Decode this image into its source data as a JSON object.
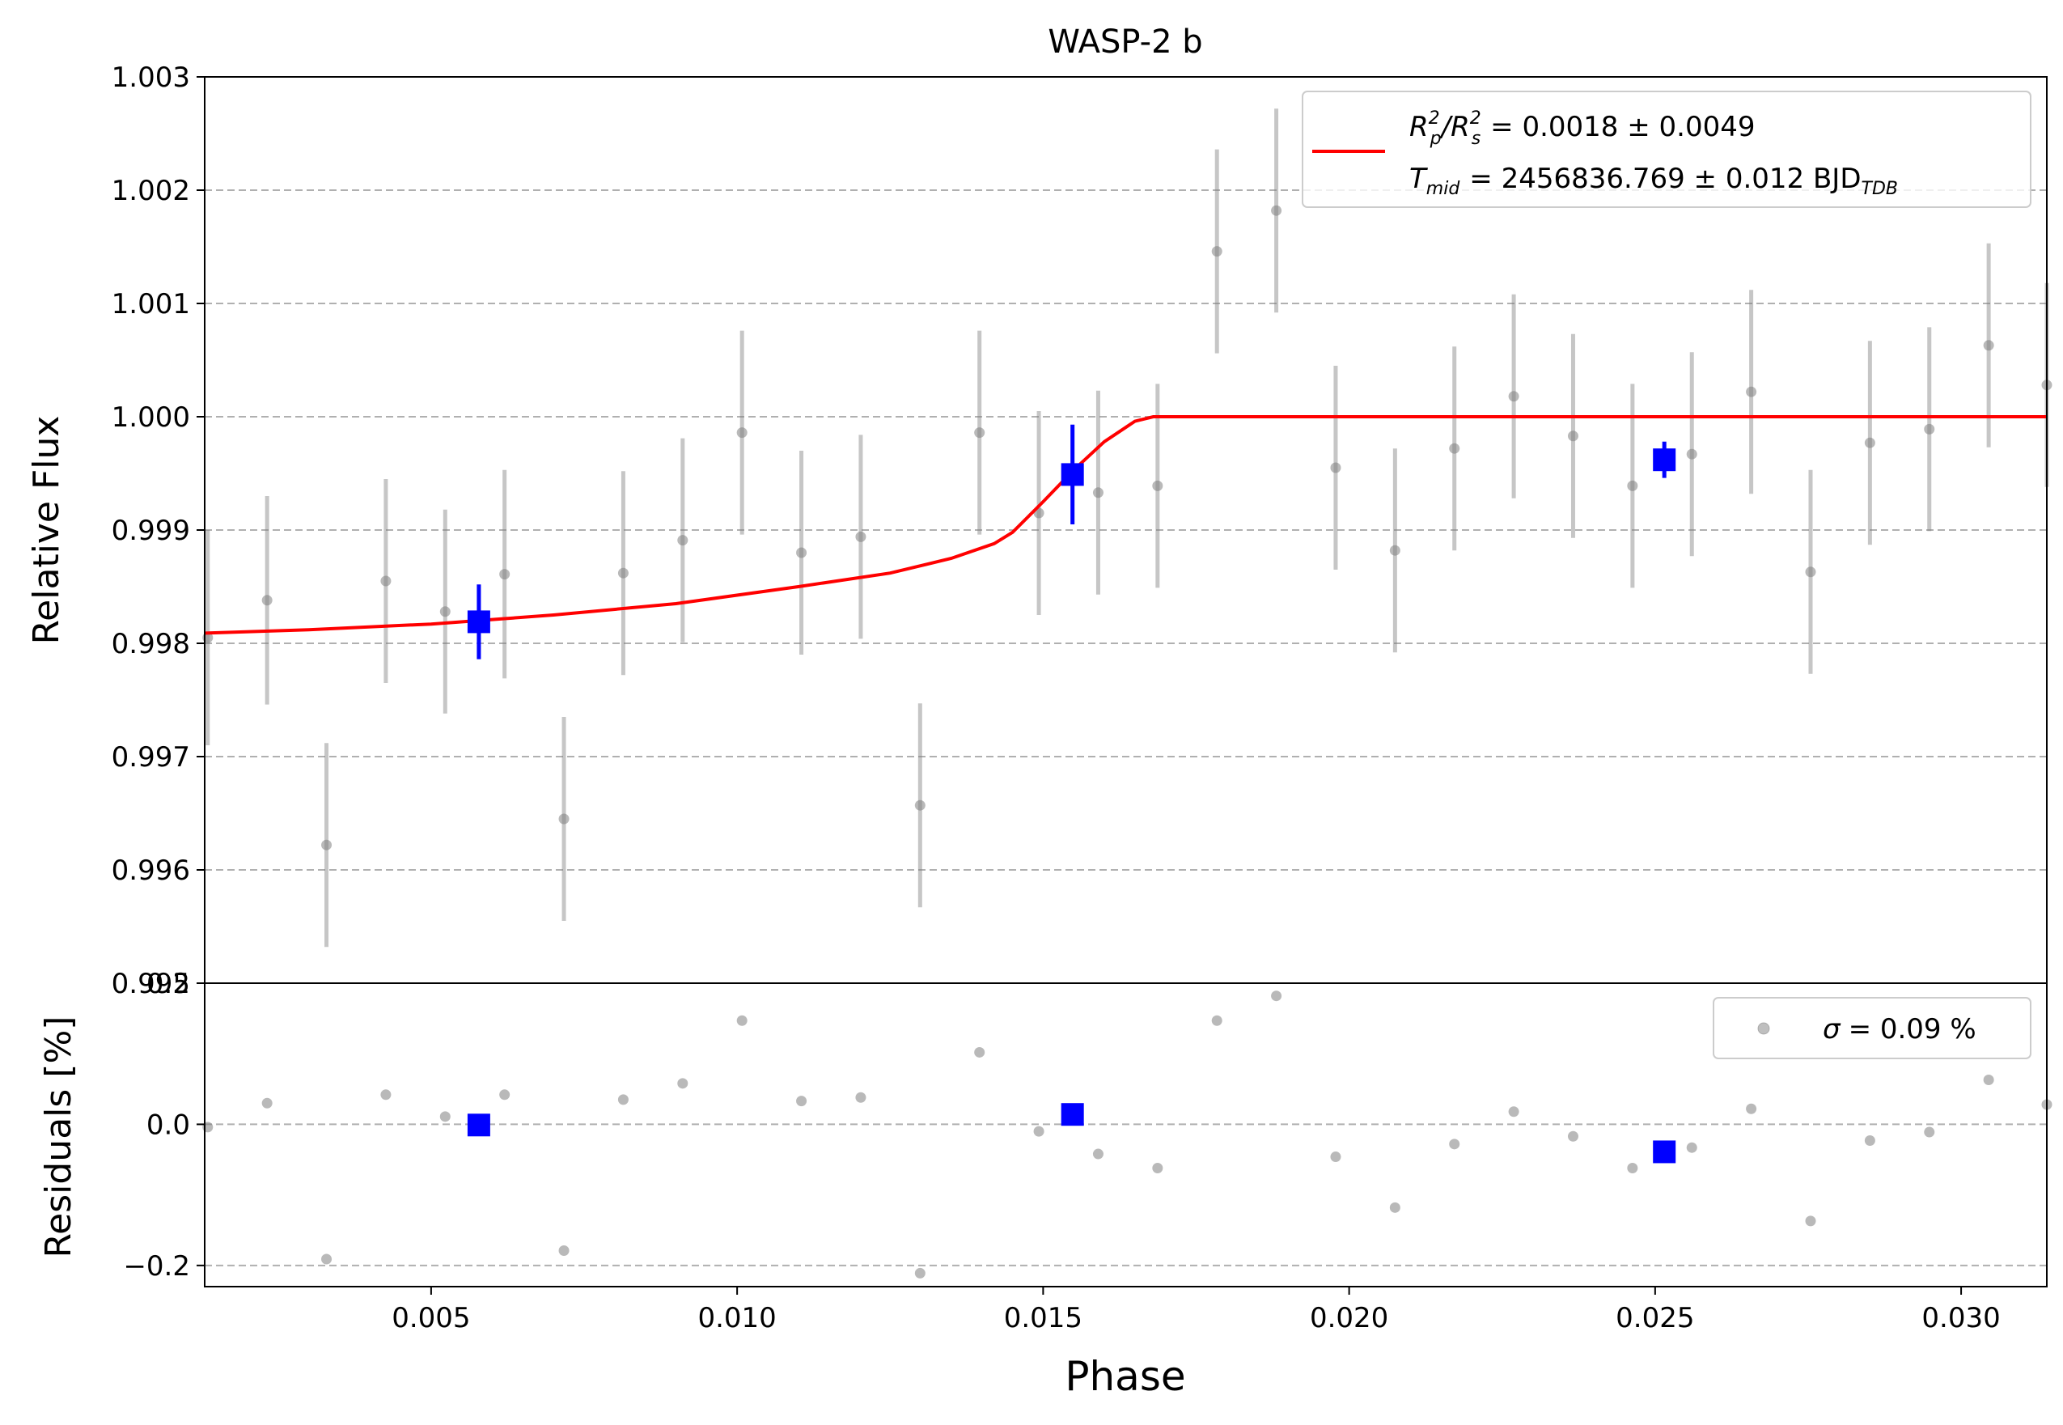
{
  "chart_data": {
    "type": "scatter",
    "title": "WASP-2 b",
    "xlabel": "Phase",
    "xlim": [
      0.0013,
      0.0314
    ],
    "x_ticks": [
      "0.005",
      "0.010",
      "0.015",
      "0.020",
      "0.025",
      "0.030"
    ],
    "x_tick_values": [
      0.005,
      0.01,
      0.015,
      0.02,
      0.025,
      0.03
    ],
    "grid": "horizontal dashed",
    "top_panel": {
      "ylabel": "Relative Flux",
      "ylim": [
        0.995,
        1.003
      ],
      "y_ticks": [
        "1.003",
        "1.002",
        "1.001",
        "1.000",
        "0.999",
        "0.998",
        "0.997",
        "0.996",
        "0.995"
      ],
      "y_tick_values": [
        1.003,
        1.002,
        1.001,
        1.0,
        0.999,
        0.998,
        0.997,
        0.996,
        0.995
      ],
      "legend": {
        "location": "top-right",
        "r_label": "R",
        "r_sub1": "p",
        "r_sup1": "2",
        "r_sup2": "2",
        "r_sub2": "s",
        "r_value": "= 0.0018 ± 0.0049",
        "t_label": "T",
        "t_sub": "mid",
        "t_value": "= 2456836.769 ± 0.012 BJD",
        "t_value_sub": "TDB"
      },
      "series": [
        {
          "kind": "data",
          "color": "#808080",
          "points": [
            [
              0.00135,
              0.99805,
              0.00095
            ],
            [
              0.00232,
              0.99838,
              0.00092
            ],
            [
              0.00329,
              0.99622,
              0.0009
            ],
            [
              0.00426,
              0.99855,
              0.0009
            ],
            [
              0.00523,
              0.99828,
              0.0009
            ],
            [
              0.0062,
              0.99861,
              0.00092
            ],
            [
              0.00717,
              0.99645,
              0.0009
            ],
            [
              0.00814,
              0.99862,
              0.0009
            ],
            [
              0.00911,
              0.99891,
              0.0009
            ],
            [
              0.01008,
              0.99986,
              0.0009
            ],
            [
              0.01105,
              0.9988,
              0.0009
            ],
            [
              0.01202,
              0.99894,
              0.0009
            ],
            [
              0.01299,
              0.99657,
              0.0009
            ],
            [
              0.01396,
              0.99986,
              0.0009
            ],
            [
              0.01493,
              0.99915,
              0.0009
            ],
            [
              0.0159,
              0.99933,
              0.0009
            ],
            [
              0.01687,
              0.99939,
              0.0009
            ],
            [
              0.01784,
              1.00146,
              0.0009
            ],
            [
              0.01881,
              1.00182,
              0.0009
            ],
            [
              0.01978,
              0.99955,
              0.0009
            ],
            [
              0.02075,
              0.99882,
              0.0009
            ],
            [
              0.02172,
              0.99972,
              0.0009
            ],
            [
              0.02269,
              1.00018,
              0.0009
            ],
            [
              0.02366,
              0.99983,
              0.0009
            ],
            [
              0.02463,
              0.99939,
              0.0009
            ],
            [
              0.0256,
              0.99967,
              0.0009
            ],
            [
              0.02657,
              1.00022,
              0.0009
            ],
            [
              0.02754,
              0.99863,
              0.0009
            ],
            [
              0.02851,
              0.99977,
              0.0009
            ],
            [
              0.02948,
              0.99989,
              0.0009
            ],
            [
              0.03045,
              1.00063,
              0.0009
            ],
            [
              0.0314,
              1.00028,
              0.0009
            ]
          ]
        },
        {
          "kind": "binned",
          "color": "#0000ff",
          "points": [
            [
              0.00578,
              0.99819,
              0.00033
            ],
            [
              0.01548,
              0.99949,
              0.00044
            ],
            [
              0.02515,
              0.99962,
              0.00016
            ]
          ]
        },
        {
          "kind": "model",
          "color": "#ff0000",
          "points": [
            [
              0.0013,
              0.99809
            ],
            [
              0.003,
              0.99812
            ],
            [
              0.005,
              0.99817
            ],
            [
              0.007,
              0.99825
            ],
            [
              0.009,
              0.99835
            ],
            [
              0.011,
              0.9985
            ],
            [
              0.0125,
              0.99862
            ],
            [
              0.0135,
              0.99875
            ],
            [
              0.0142,
              0.99888
            ],
            [
              0.0145,
              0.99898
            ],
            [
              0.015,
              0.99925
            ],
            [
              0.0155,
              0.99953
            ],
            [
              0.016,
              0.99978
            ],
            [
              0.0165,
              0.99996
            ],
            [
              0.0168,
              1.0
            ],
            [
              0.0314,
              1.0
            ]
          ]
        }
      ]
    },
    "bottom_panel": {
      "ylabel": "Residuals [%]",
      "ylim": [
        -0.23,
        0.2
      ],
      "y_ticks": [
        "0.2",
        "0.0",
        "−0.2"
      ],
      "y_tick_values": [
        0.2,
        0.0,
        -0.2
      ],
      "legend": {
        "location": "top-right",
        "sigma_symbol": "σ",
        "sigma_value": "= 0.09 %"
      },
      "series": [
        {
          "kind": "residuals",
          "color": "#808080",
          "points": [
            [
              0.00135,
              -0.004
            ],
            [
              0.00232,
              0.03
            ],
            [
              0.00329,
              -0.191
            ],
            [
              0.00426,
              0.042
            ],
            [
              0.00523,
              0.011
            ],
            [
              0.0062,
              0.042
            ],
            [
              0.00717,
              -0.179
            ],
            [
              0.00814,
              0.035
            ],
            [
              0.00911,
              0.058
            ],
            [
              0.01008,
              0.147
            ],
            [
              0.01105,
              0.033
            ],
            [
              0.01202,
              0.038
            ],
            [
              0.01299,
              -0.211
            ],
            [
              0.01396,
              0.102
            ],
            [
              0.01493,
              -0.01
            ],
            [
              0.0159,
              -0.042
            ],
            [
              0.01687,
              -0.062
            ],
            [
              0.01784,
              0.147
            ],
            [
              0.01881,
              0.182
            ],
            [
              0.01978,
              -0.046
            ],
            [
              0.02075,
              -0.118
            ],
            [
              0.02172,
              -0.028
            ],
            [
              0.02269,
              0.018
            ],
            [
              0.02366,
              -0.017
            ],
            [
              0.02463,
              -0.062
            ],
            [
              0.0256,
              -0.033
            ],
            [
              0.02657,
              0.022
            ],
            [
              0.02754,
              -0.137
            ],
            [
              0.02851,
              -0.023
            ],
            [
              0.02948,
              -0.011
            ],
            [
              0.03045,
              0.063
            ],
            [
              0.0314,
              0.028
            ]
          ]
        },
        {
          "kind": "binned-residuals",
          "color": "#0000ff",
          "points": [
            [
              0.00578,
              -0.001
            ],
            [
              0.01548,
              0.014
            ],
            [
              0.02515,
              -0.039
            ]
          ]
        }
      ]
    }
  }
}
